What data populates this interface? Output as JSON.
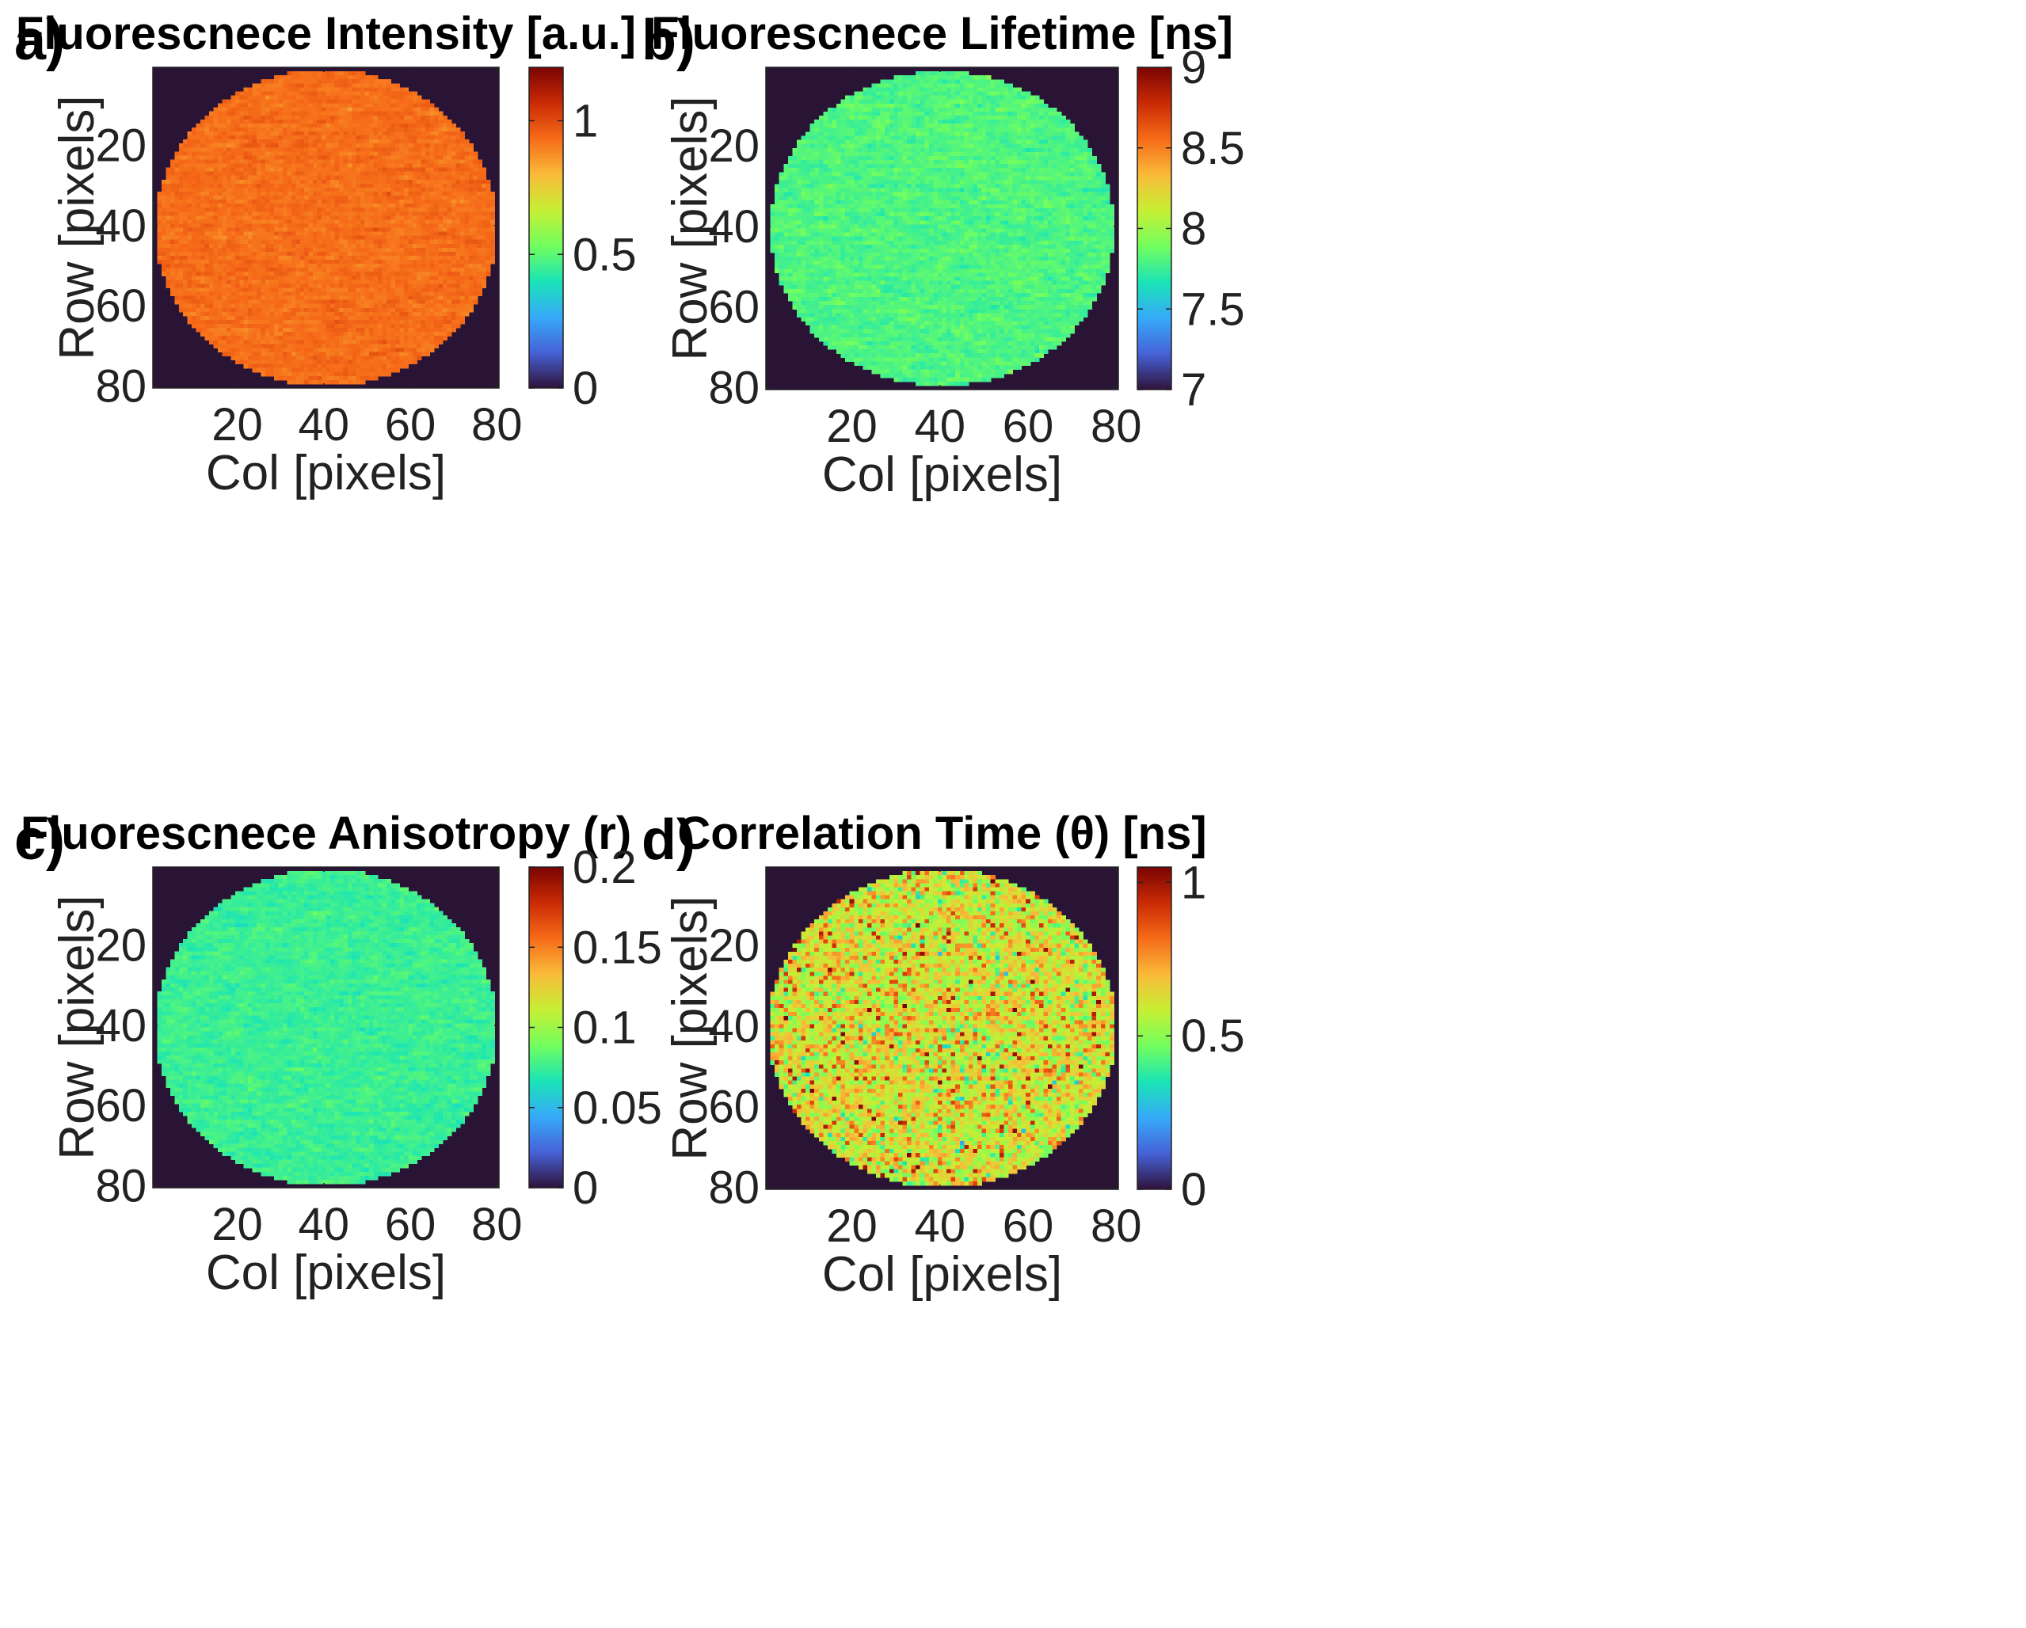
{
  "figure": {
    "colormap": [
      "#30123b",
      "#4662d7",
      "#36aaf9",
      "#1ae4b6",
      "#72fe5e",
      "#c7ef34",
      "#faba39",
      "#f66b19",
      "#ca2a04",
      "#7a0403"
    ],
    "background_color": "#2a1436"
  },
  "chart_data": [
    {
      "type": "heatmap",
      "panel_letter": "a)",
      "title": "Fluorescnece Intensity [a.u.]",
      "xlabel": "Col [pixels]",
      "ylabel": "Row [pixels]",
      "xticks": [
        20,
        40,
        60,
        80
      ],
      "yticks": [
        20,
        40,
        60,
        80
      ],
      "xlim": [
        0.5,
        80.5
      ],
      "ylim": [
        0.5,
        80.5
      ],
      "colorbar_ticks": [
        "0",
        "0.5",
        "1"
      ],
      "colorbar_values": [
        0,
        0.5,
        1
      ],
      "clim": [
        0,
        1.2
      ],
      "map_description": "circular uniform region, mean value ~0.93",
      "mean_value": 0.93,
      "noise_spread": 0.03,
      "circle_center": [
        40.5,
        40.5
      ],
      "circle_radius": 39.5
    },
    {
      "type": "heatmap",
      "panel_letter": "b)",
      "title": "Fluorescnece Lifetime [ns]",
      "xlabel": "Col [pixels]",
      "ylabel": "Row [pixels]",
      "xticks": [
        20,
        40,
        60,
        80
      ],
      "yticks": [
        20,
        40,
        60,
        80
      ],
      "xlim": [
        0.5,
        80.5
      ],
      "ylim": [
        0.5,
        80.5
      ],
      "colorbar_ticks": [
        "7",
        "7.5",
        "8",
        "8.5",
        "9"
      ],
      "colorbar_values": [
        7,
        7.5,
        8,
        8.5,
        9
      ],
      "clim": [
        7,
        9
      ],
      "map_description": "circular uniform region, mean value ~7.8 ns",
      "mean_value": 7.8,
      "noise_spread": 0.07,
      "circle_center": [
        40.5,
        40.5
      ],
      "circle_radius": 39
    },
    {
      "type": "heatmap",
      "panel_letter": "c)",
      "title": "Fluorescnece Anisotropy (r)",
      "xlabel": "Col [pixels]",
      "ylabel": "Row [pixels]",
      "xticks": [
        20,
        40,
        60,
        80
      ],
      "yticks": [
        20,
        40,
        60,
        80
      ],
      "xlim": [
        0.5,
        80.5
      ],
      "ylim": [
        0.5,
        80.5
      ],
      "colorbar_ticks": [
        "0",
        "0.05",
        "0.1",
        "0.15",
        "0.2"
      ],
      "colorbar_values": [
        0,
        0.05,
        0.1,
        0.15,
        0.2
      ],
      "clim": [
        0,
        0.2
      ],
      "map_description": "circular uniform region, mean value ~0.075",
      "mean_value": 0.075,
      "noise_spread": 0.006,
      "circle_center": [
        40.5,
        40.5
      ],
      "circle_radius": 39.5
    },
    {
      "type": "heatmap",
      "panel_letter": "d)",
      "title": "Correlation Time (θ) [ns]",
      "xlabel": "Col [pixels]",
      "ylabel": "Row [pixels]",
      "xticks": [
        20,
        40,
        60,
        80
      ],
      "yticks": [
        20,
        40,
        60,
        80
      ],
      "xlim": [
        0.5,
        80.5
      ],
      "ylim": [
        0.5,
        80.5
      ],
      "colorbar_ticks": [
        "0",
        "0.5",
        "1"
      ],
      "colorbar_values": [
        0,
        0.5,
        1
      ],
      "clim": [
        0,
        1.05
      ],
      "map_description": "circular noisy region, mean value ~0.6 ns with hot spots up to ~1",
      "mean_value": 0.6,
      "noise_spread": 0.1,
      "circle_center": [
        40.5,
        40.5
      ],
      "circle_radius": 39.5
    }
  ]
}
